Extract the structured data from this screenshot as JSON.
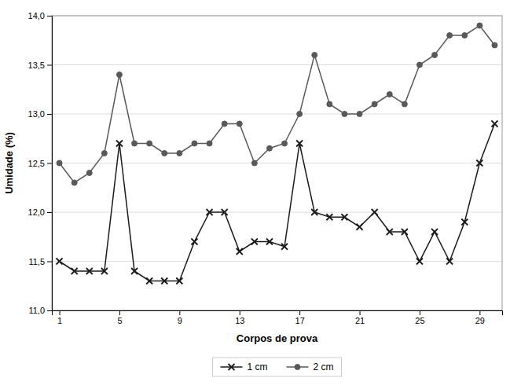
{
  "chart_data": {
    "type": "line",
    "x": [
      1,
      2,
      3,
      4,
      5,
      6,
      7,
      8,
      9,
      10,
      11,
      12,
      13,
      14,
      15,
      16,
      17,
      18,
      19,
      20,
      21,
      22,
      23,
      24,
      25,
      26,
      27,
      28,
      29,
      30
    ],
    "series": [
      {
        "name": "1 cm",
        "color": "#1a1a1a",
        "marker": "x",
        "line_style": "solid",
        "values": [
          11.5,
          11.4,
          11.4,
          11.4,
          12.7,
          11.4,
          11.3,
          11.3,
          11.3,
          11.7,
          12.0,
          12.0,
          11.6,
          11.7,
          11.7,
          11.65,
          12.7,
          12.0,
          11.95,
          11.95,
          11.85,
          12.0,
          11.8,
          11.8,
          11.5,
          11.8,
          11.5,
          11.9,
          12.5,
          12.9
        ]
      },
      {
        "name": "2 cm",
        "color": "#595959",
        "marker": "circle",
        "line_style": "solid",
        "values": [
          12.5,
          12.3,
          12.4,
          12.6,
          13.4,
          12.7,
          12.7,
          12.6,
          12.6,
          12.7,
          12.7,
          12.9,
          12.9,
          12.5,
          12.65,
          12.7,
          13.0,
          13.6,
          13.1,
          13.0,
          13.0,
          13.1,
          13.2,
          13.1,
          13.5,
          13.6,
          13.8,
          13.8,
          13.9,
          13.7
        ]
      }
    ],
    "x_label": "Corpos de prova",
    "y_label": "Umidade (%)",
    "xlim": [
      0.5,
      30.5
    ],
    "xticks": [
      1,
      5,
      9,
      13,
      17,
      21,
      25,
      29
    ],
    "ylim": [
      11.0,
      14.0
    ],
    "yticks": [
      {
        "value": 11.0,
        "label": "11,0"
      },
      {
        "value": 11.5,
        "label": "11,5"
      },
      {
        "value": 12.0,
        "label": "12,0"
      },
      {
        "value": 12.5,
        "label": "12,5"
      },
      {
        "value": 13.0,
        "label": "13,0"
      },
      {
        "value": 13.5,
        "label": "13,5"
      },
      {
        "value": 14.0,
        "label": "14,0"
      }
    ],
    "grid": true,
    "legend": "bottom"
  }
}
